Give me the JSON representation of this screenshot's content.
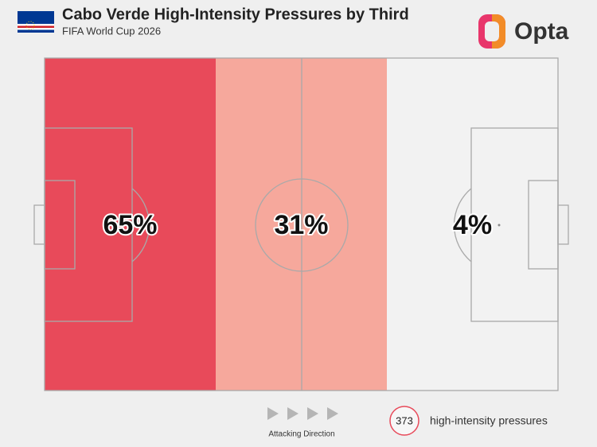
{
  "chart_data": {
    "type": "pitch",
    "title": "Cabo Verde High-Intensity Pressures by Third",
    "subtitle": "FIFA World Cup 2026",
    "brand": "Opta",
    "values": [
      65,
      31,
      4
    ],
    "value_labels": [
      "65%",
      "31%",
      "4%"
    ],
    "colors": [
      "#e84a5a",
      "#f6a89c",
      "#f2f2f2"
    ],
    "annotation": "Attacking Direction",
    "total": 373,
    "total_label": "high-intensity pressures"
  }
}
